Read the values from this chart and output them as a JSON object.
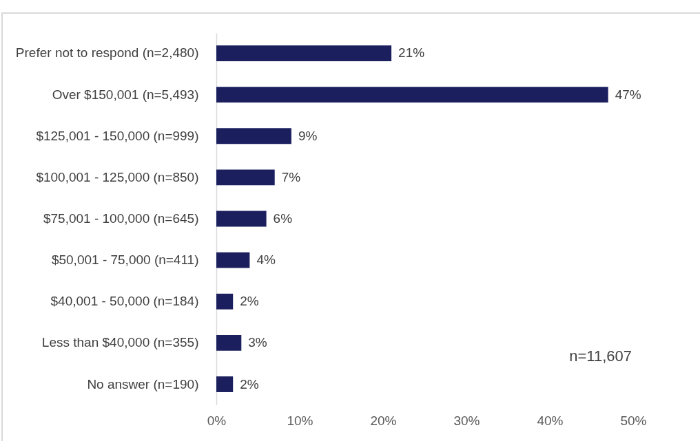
{
  "chart_data": {
    "type": "bar",
    "orientation": "horizontal",
    "categories": [
      "Prefer not to respond (n=2,480)",
      "Over $150,001 (n=5,493)",
      "$125,001 - 150,000 (n=999)",
      "$100,001 - 125,000 (n=850)",
      "$75,001 - 100,000 (n=645)",
      "$50,001 - 75,000 (n=411)",
      "$40,001 - 50,000 (n=184)",
      "Less than $40,000 (n=355)",
      "No answer (n=190)"
    ],
    "values": [
      21,
      47,
      9,
      7,
      6,
      4,
      2,
      3,
      2
    ],
    "value_labels": [
      "21%",
      "47%",
      "9%",
      "7%",
      "6%",
      "4%",
      "2%",
      "3%",
      "2%"
    ],
    "color": "#1b1f5e",
    "xlim": [
      0,
      50
    ],
    "xticks": [
      {
        "value": 0,
        "label": "0%"
      },
      {
        "value": 10,
        "label": "10%"
      },
      {
        "value": 20,
        "label": "20%"
      },
      {
        "value": 30,
        "label": "30%"
      },
      {
        "value": 40,
        "label": "40%"
      },
      {
        "value": 50,
        "label": "50%"
      }
    ],
    "annotations": [
      "n=11,607"
    ]
  }
}
